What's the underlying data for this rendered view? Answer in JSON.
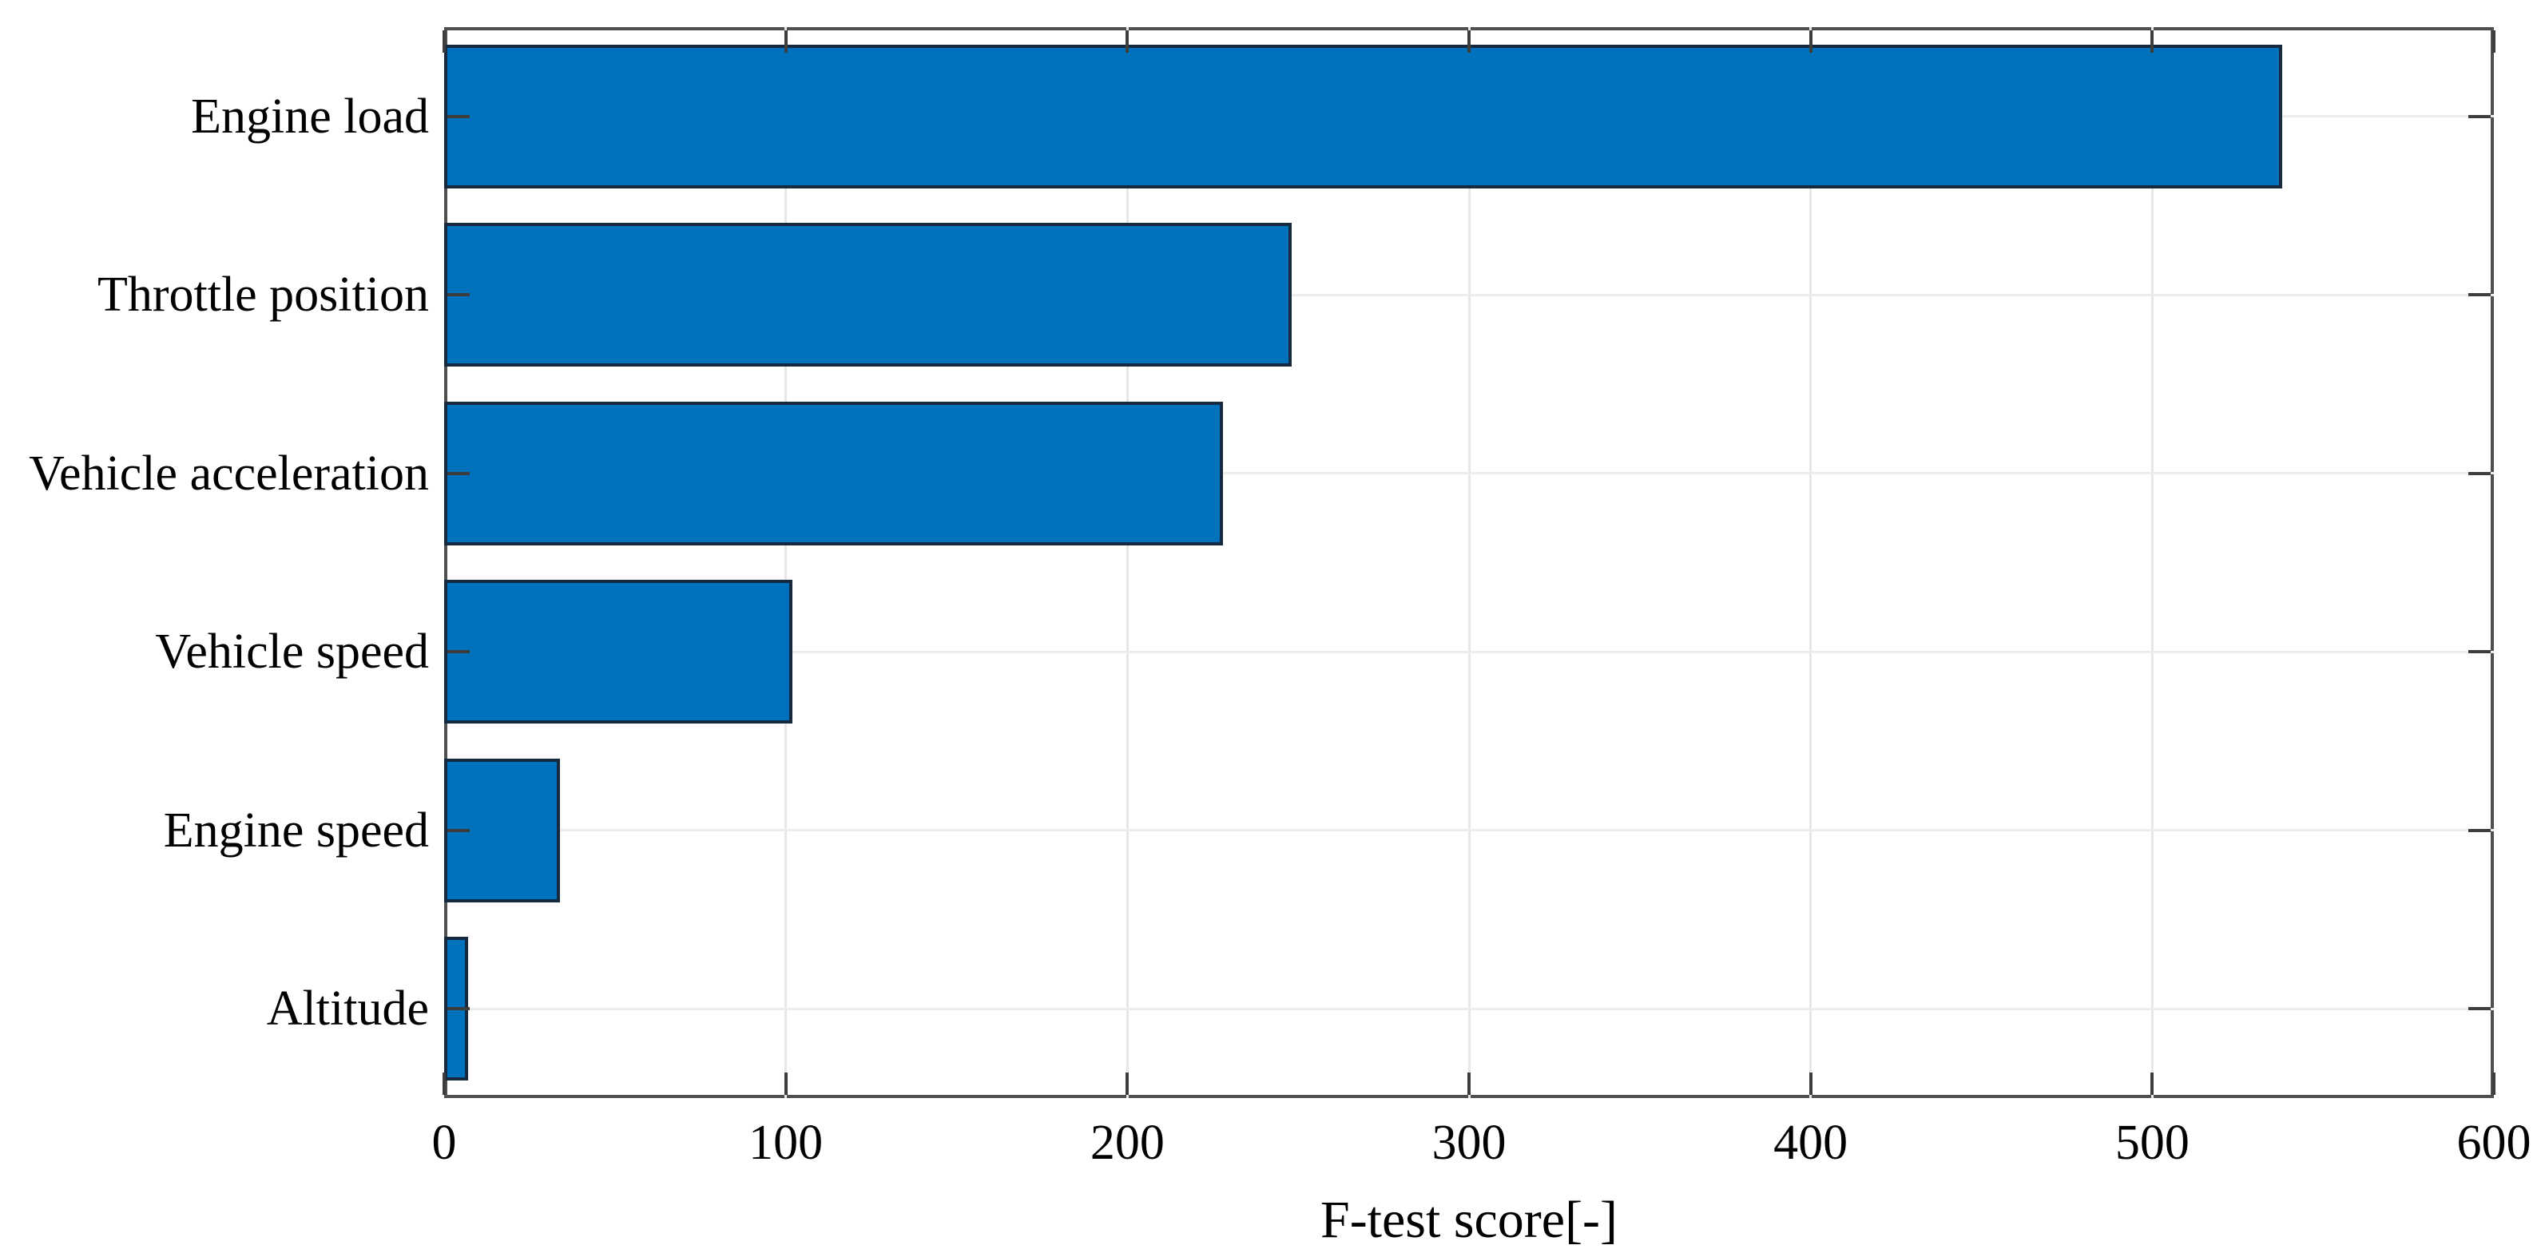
{
  "chart_data": {
    "type": "bar",
    "orientation": "horizontal",
    "title": "",
    "xlabel": "F-test score[-]",
    "ylabel": "",
    "categories": [
      "Engine load",
      "Throttle position",
      "Vehicle acceleration",
      "Vehicle speed",
      "Engine speed",
      "Altitude"
    ],
    "values": [
      538,
      248,
      228,
      102,
      34,
      7
    ],
    "xlim": [
      0,
      600
    ],
    "xticks": [
      0,
      100,
      200,
      300,
      400,
      500,
      600
    ],
    "grid": true,
    "legend": null,
    "colors": {
      "bar_fill": "#0072BD",
      "bar_edge": "#16293F",
      "axis_box": "#4F4F4F",
      "grid_line": "#E7E7E7",
      "tick_mark": "#3D3D3D",
      "text": "#000000",
      "background": "#FFFFFF"
    }
  }
}
